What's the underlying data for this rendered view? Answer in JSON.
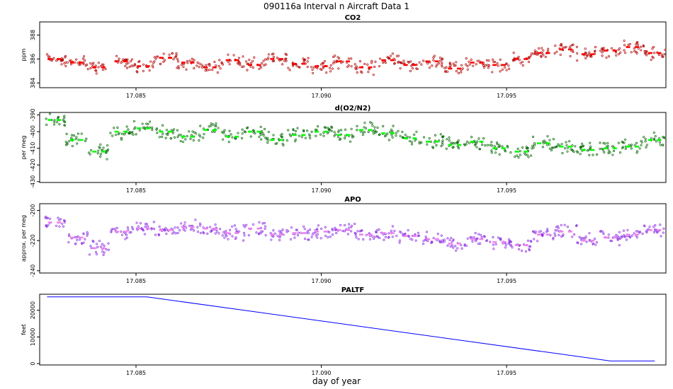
{
  "title": "090116a   Interval n Aircraft Data 1",
  "xlabel": "day of year",
  "chart_data": [
    {
      "type": "scatter",
      "title": "CO2",
      "ylabel": "ppm",
      "xlim": [
        17.0824,
        17.0993
      ],
      "ylim": [
        383.6,
        389.1
      ],
      "x_ticks": [
        "17.085",
        "17.090",
        "17.095"
      ],
      "y_ticks": [
        "384",
        "386",
        "388"
      ],
      "raw_color": "#b00000",
      "avg_color": "#ff0000",
      "segments": [
        {
          "x": 17.0828,
          "y": 386.0
        },
        {
          "x": 17.0834,
          "y": 385.7
        },
        {
          "x": 17.084,
          "y": 385.3
        },
        {
          "x": 17.0846,
          "y": 385.8
        },
        {
          "x": 17.0852,
          "y": 385.4
        },
        {
          "x": 17.0858,
          "y": 386.1
        },
        {
          "x": 17.0864,
          "y": 385.7
        },
        {
          "x": 17.087,
          "y": 385.3
        },
        {
          "x": 17.0876,
          "y": 385.9
        },
        {
          "x": 17.0882,
          "y": 385.5
        },
        {
          "x": 17.0888,
          "y": 386.0
        },
        {
          "x": 17.0894,
          "y": 385.6
        },
        {
          "x": 17.09,
          "y": 385.4
        },
        {
          "x": 17.0906,
          "y": 385.8
        },
        {
          "x": 17.0912,
          "y": 385.3
        },
        {
          "x": 17.0918,
          "y": 385.9
        },
        {
          "x": 17.0924,
          "y": 385.5
        },
        {
          "x": 17.093,
          "y": 385.8
        },
        {
          "x": 17.0936,
          "y": 385.2
        },
        {
          "x": 17.0942,
          "y": 385.7
        },
        {
          "x": 17.0948,
          "y": 385.5
        },
        {
          "x": 17.0954,
          "y": 386.0
        },
        {
          "x": 17.096,
          "y": 386.5
        },
        {
          "x": 17.0966,
          "y": 386.8
        },
        {
          "x": 17.0972,
          "y": 386.4
        },
        {
          "x": 17.0978,
          "y": 386.7
        },
        {
          "x": 17.0984,
          "y": 387.0
        },
        {
          "x": 17.099,
          "y": 386.5
        }
      ]
    },
    {
      "type": "scatter",
      "title": "d(O2/N2)",
      "ylabel": "per meg",
      "xlim": [
        17.0824,
        17.0993
      ],
      "ylim": [
        -430.5,
        -388.5
      ],
      "x_ticks": [
        "17.085",
        "17.090",
        "17.095"
      ],
      "y_ticks": [
        "-430",
        "-420",
        "-410",
        "-400",
        "-390"
      ],
      "raw_color": "#006400",
      "avg_color": "#00ff00",
      "segments": [
        {
          "x": 17.0828,
          "y": -393.0
        },
        {
          "x": 17.0834,
          "y": -405.0
        },
        {
          "x": 17.084,
          "y": -412.0
        },
        {
          "x": 17.0846,
          "y": -400.0
        },
        {
          "x": 17.0852,
          "y": -398.0
        },
        {
          "x": 17.0858,
          "y": -400.0
        },
        {
          "x": 17.0864,
          "y": -403.0
        },
        {
          "x": 17.087,
          "y": -399.0
        },
        {
          "x": 17.0876,
          "y": -403.0
        },
        {
          "x": 17.0882,
          "y": -400.0
        },
        {
          "x": 17.0888,
          "y": -405.0
        },
        {
          "x": 17.0894,
          "y": -402.0
        },
        {
          "x": 17.09,
          "y": -400.0
        },
        {
          "x": 17.0906,
          "y": -402.0
        },
        {
          "x": 17.0912,
          "y": -399.0
        },
        {
          "x": 17.0918,
          "y": -401.0
        },
        {
          "x": 17.0924,
          "y": -404.0
        },
        {
          "x": 17.093,
          "y": -406.0
        },
        {
          "x": 17.0936,
          "y": -408.0
        },
        {
          "x": 17.0942,
          "y": -406.0
        },
        {
          "x": 17.0948,
          "y": -410.0
        },
        {
          "x": 17.0954,
          "y": -412.0
        },
        {
          "x": 17.096,
          "y": -407.0
        },
        {
          "x": 17.0966,
          "y": -409.0
        },
        {
          "x": 17.0972,
          "y": -411.0
        },
        {
          "x": 17.0978,
          "y": -410.0
        },
        {
          "x": 17.0984,
          "y": -409.0
        },
        {
          "x": 17.099,
          "y": -405.0
        }
      ]
    },
    {
      "type": "scatter",
      "title": "APO",
      "ylabel": "approx. per meg",
      "xlim": [
        17.0824,
        17.0993
      ],
      "ylim": [
        -241.5,
        -195.5
      ],
      "x_ticks": [
        "17.085",
        "17.090",
        "17.095"
      ],
      "y_ticks": [
        "-240",
        "-220",
        "-200"
      ],
      "raw_color": "#8a2be2",
      "avg_color": "#ee82ee",
      "segments": [
        {
          "x": 17.0828,
          "y": -208.0
        },
        {
          "x": 17.0834,
          "y": -218.0
        },
        {
          "x": 17.084,
          "y": -225.0
        },
        {
          "x": 17.0846,
          "y": -214.0
        },
        {
          "x": 17.0852,
          "y": -212.0
        },
        {
          "x": 17.0858,
          "y": -213.0
        },
        {
          "x": 17.0864,
          "y": -211.0
        },
        {
          "x": 17.087,
          "y": -212.0
        },
        {
          "x": 17.0876,
          "y": -215.0
        },
        {
          "x": 17.0882,
          "y": -212.0
        },
        {
          "x": 17.0888,
          "y": -216.0
        },
        {
          "x": 17.0894,
          "y": -215.0
        },
        {
          "x": 17.09,
          "y": -214.0
        },
        {
          "x": 17.0906,
          "y": -213.0
        },
        {
          "x": 17.0912,
          "y": -216.0
        },
        {
          "x": 17.0918,
          "y": -215.0
        },
        {
          "x": 17.0924,
          "y": -217.0
        },
        {
          "x": 17.093,
          "y": -219.0
        },
        {
          "x": 17.0936,
          "y": -222.0
        },
        {
          "x": 17.0942,
          "y": -219.0
        },
        {
          "x": 17.0948,
          "y": -221.0
        },
        {
          "x": 17.0954,
          "y": -223.0
        },
        {
          "x": 17.096,
          "y": -216.0
        },
        {
          "x": 17.0966,
          "y": -214.0
        },
        {
          "x": 17.0972,
          "y": -220.0
        },
        {
          "x": 17.0978,
          "y": -218.0
        },
        {
          "x": 17.0984,
          "y": -216.0
        },
        {
          "x": 17.099,
          "y": -213.0
        }
      ]
    },
    {
      "type": "line",
      "title": "PALTF",
      "ylabel": "feet",
      "xlim": [
        17.0824,
        17.0993
      ],
      "ylim": [
        -500,
        26000
      ],
      "x_ticks": [
        "17.085",
        "17.090",
        "17.095"
      ],
      "y_ticks": [
        "0",
        "10000",
        "20000"
      ],
      "line_color": "#0000ff",
      "x": [
        17.0826,
        17.0853,
        17.0978,
        17.099
      ],
      "y": [
        25000,
        25000,
        1000,
        1000
      ]
    }
  ]
}
